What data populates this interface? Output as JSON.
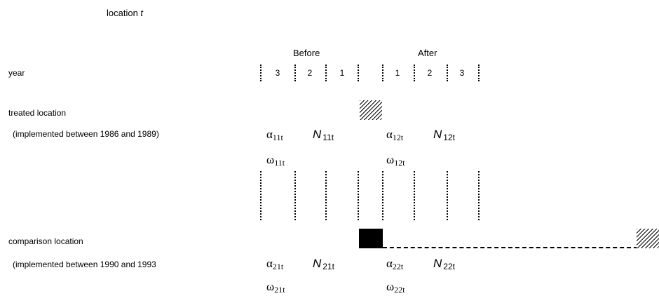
{
  "title": {
    "prefix": "location ",
    "variable": "t"
  },
  "headers": {
    "before": "Before",
    "after": "After"
  },
  "year_label": "year",
  "before_years": [
    "3",
    "2",
    "1"
  ],
  "after_years": [
    "1",
    "2",
    "3"
  ],
  "treated": {
    "label": "treated location",
    "detail": "(implemented between 1986 and 1989)",
    "alpha_before": {
      "sym": "α",
      "sub": "11t"
    },
    "n_before": {
      "sym": "N",
      "sub": "11t"
    },
    "alpha_after": {
      "sym": "α",
      "sub": "12t"
    },
    "n_after": {
      "sym": "N",
      "sub": "12t"
    },
    "omega_before": {
      "sym": "ω",
      "sub": "11t"
    },
    "omega_after": {
      "sym": "ω",
      "sub": "12t"
    }
  },
  "comparison": {
    "label": "comparison location",
    "detail": "(implemented between 1990 and 1993",
    "alpha_before": {
      "sym": "α",
      "sub": "21t"
    },
    "n_before": {
      "sym": "N",
      "sub": "21t"
    },
    "alpha_after": {
      "sym": "α",
      "sub": "22t"
    },
    "n_after": {
      "sym": "N",
      "sub": "22t"
    },
    "omega_before": {
      "sym": "ω",
      "sub": "21t"
    },
    "omega_after": {
      "sym": "ω",
      "sub": "22t"
    }
  }
}
